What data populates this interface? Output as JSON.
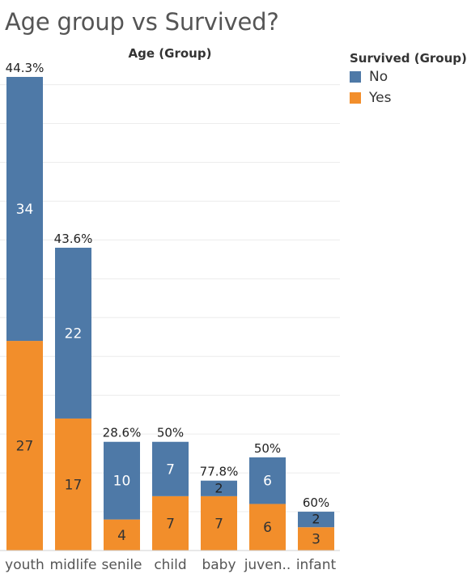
{
  "title": "Age group vs Survived?",
  "chart_data": {
    "type": "bar",
    "stacked": true,
    "header": "Age (Group)",
    "categories": [
      "youth",
      "midlife",
      "senile",
      "child",
      "baby",
      "juven..",
      "infant"
    ],
    "series": [
      {
        "name": "Yes",
        "color": "#f28e2b",
        "values": [
          27,
          17,
          4,
          7,
          7,
          6,
          3
        ]
      },
      {
        "name": "No",
        "color": "#4e79a7",
        "values": [
          34,
          22,
          10,
          7,
          2,
          6,
          2
        ]
      }
    ],
    "top_labels": [
      "44.3%",
      "43.6%",
      "28.6%",
      "50%",
      "77.8%",
      "50%",
      "60%"
    ],
    "ylim": [
      0,
      61
    ],
    "grid": true,
    "legend": {
      "title": "Survived (Group)",
      "position": "top-right",
      "items": [
        {
          "label": "No",
          "color": "#4e79a7"
        },
        {
          "label": "Yes",
          "color": "#f28e2b"
        }
      ]
    }
  }
}
